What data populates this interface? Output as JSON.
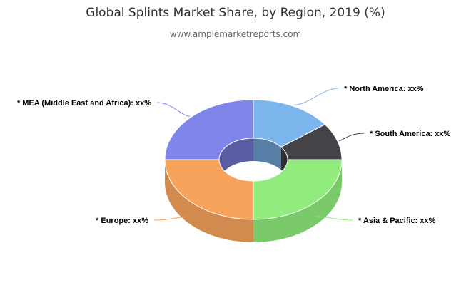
{
  "colors": {
    "north_america": "#7cb5ec",
    "south_america": "#434348",
    "asia_pacific": "#90ed7d",
    "europe": "#f7a35c",
    "mea": "#8085e9"
  },
  "chart_data": {
    "type": "pie",
    "title": "Global Splints Market Share, by Region, 2019 (%)",
    "subtitle": "www.amplemarketreports.com",
    "donut": true,
    "three_d": true,
    "slices": [
      {
        "key": "north_america",
        "label": "* North America: xx%",
        "value": 15,
        "color": "#7cb5ec",
        "label_side": "right"
      },
      {
        "key": "south_america",
        "label": "* South America: xx%",
        "value": 10,
        "color": "#434348",
        "label_side": "right"
      },
      {
        "key": "asia_pacific",
        "label": "* Asia & Pacific: xx%",
        "value": 25,
        "color": "#90ed7d",
        "label_side": "right"
      },
      {
        "key": "europe",
        "label": "* Europe: xx%",
        "value": 25,
        "color": "#f7a35c",
        "label_side": "left"
      },
      {
        "key": "mea",
        "label": "* MEA (Middle East and Africa): xx%",
        "value": 25,
        "color": "#8085e9",
        "label_side": "left"
      }
    ]
  }
}
